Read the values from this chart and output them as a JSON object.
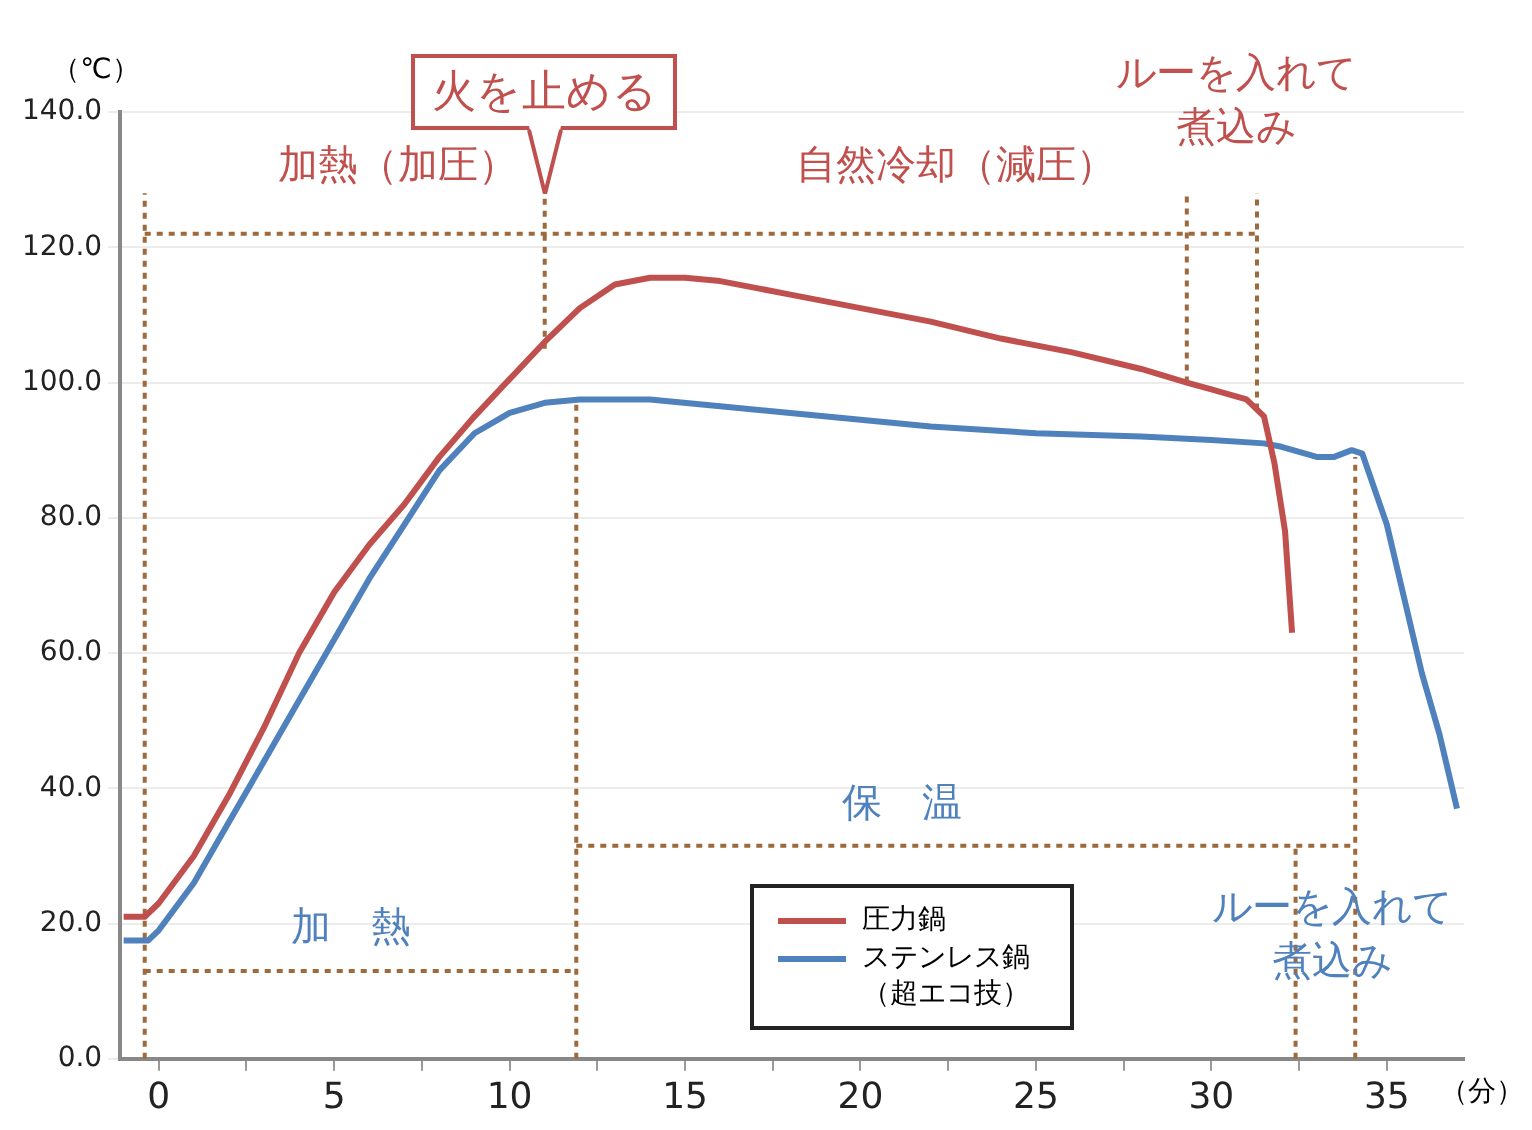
{
  "chart_data": {
    "type": "line",
    "xlabel": "（分）",
    "ylabel": "（℃）",
    "xlim": [
      -1.1,
      37.2
    ],
    "xticks": [
      0,
      {
        "value": 2.5,
        "label": null
      },
      5,
      {
        "value": 7.5,
        "label": null
      },
      10,
      {
        "value": 12.5,
        "label": null
      },
      15,
      {
        "value": 17.5,
        "label": null
      },
      20,
      {
        "value": 22.5,
        "label": null
      },
      25,
      {
        "value": 27.5,
        "label": null
      },
      30,
      {
        "value": 32.5,
        "label": null
      },
      35
    ],
    "ylim": [
      0,
      140
    ],
    "yticks": [
      {
        "value": 0,
        "label": "0.0"
      },
      {
        "value": 20,
        "label": "20.0"
      },
      {
        "value": 40,
        "label": "40.0"
      },
      {
        "value": 60,
        "label": "60.0"
      },
      {
        "value": 80,
        "label": "80.0"
      },
      {
        "value": 100,
        "label": "100.0"
      },
      {
        "value": 120,
        "label": "120.0"
      },
      {
        "value": 140,
        "label": "140.0"
      }
    ],
    "grid": "y",
    "legend": "bottom",
    "marker": "none",
    "line_style": "solid",
    "series": [
      {
        "name": "圧力鍋",
        "color": "#c0504d",
        "x": [
          -1,
          -0.4,
          0,
          1,
          2,
          3,
          4,
          5,
          6,
          7,
          8,
          9,
          10,
          11,
          12,
          13,
          14,
          15,
          16,
          18,
          20,
          22,
          24,
          26,
          28,
          29.3,
          30,
          31,
          31.5,
          31.8,
          32.1,
          32.3
        ],
        "values": [
          21,
          21,
          23,
          30,
          39,
          49,
          60,
          69,
          76,
          82,
          89,
          95,
          100.5,
          106,
          111,
          114.5,
          115.5,
          115.5,
          115,
          113,
          111,
          109,
          106.5,
          104.5,
          102,
          100,
          99,
          97.5,
          95,
          88,
          78,
          63
        ]
      },
      {
        "name": "ステンレス鍋（超エコ技）",
        "color": "#4f81bd",
        "x": [
          -1,
          -0.3,
          0,
          1,
          2,
          3,
          4,
          5,
          6,
          7,
          8,
          9,
          10,
          11,
          12,
          14,
          16,
          18,
          20,
          22,
          25,
          28,
          30,
          31.5,
          32,
          33,
          33.5,
          34,
          34.3,
          35,
          35.5,
          36,
          36.5,
          37
        ],
        "values": [
          17.5,
          17.5,
          19,
          26,
          35,
          44,
          53,
          62,
          71,
          79,
          87,
          92.5,
          95.5,
          97,
          97.5,
          97.5,
          96.5,
          95.5,
          94.5,
          93.5,
          92.5,
          92,
          91.5,
          91,
          90.5,
          89,
          89,
          90,
          89.5,
          79,
          68,
          57,
          48,
          37
        ]
      },
      {
        "color": "#9c6a3c",
        "line_style": "dotted",
        "x": [
          -0.4,
          -0.4
        ],
        "values": [
          0,
          128
        ]
      },
      {
        "color": "#9c6a3c",
        "line_style": "dotted",
        "x": [
          11,
          11
        ],
        "values": [
          105,
          128
        ]
      },
      {
        "color": "#9c6a3c",
        "line_style": "dotted",
        "x": [
          29.3,
          29.3
        ],
        "values": [
          100,
          128
        ]
      },
      {
        "color": "#9c6a3c",
        "line_style": "dotted",
        "x": [
          31.3,
          31.3
        ],
        "values": [
          96,
          128
        ]
      },
      {
        "color": "#9c6a3c",
        "line_style": "dotted",
        "x": [
          -0.4,
          31.3
        ],
        "values": [
          122,
          122
        ]
      },
      {
        "color": "#9c6a3c",
        "line_style": "dotted",
        "x": [
          11.9,
          11.9
        ],
        "values": [
          0,
          97
        ]
      },
      {
        "color": "#9c6a3c",
        "line_style": "dotted",
        "x": [
          32.4,
          32.4
        ],
        "values": [
          0,
          31.5
        ]
      },
      {
        "color": "#9c6a3c",
        "line_style": "dotted",
        "x": [
          34.1,
          34.1
        ],
        "values": [
          0,
          89
        ]
      },
      {
        "color": "#9c6a3c",
        "line_style": "dotted",
        "x": [
          11.9,
          34.1
        ],
        "values": [
          31.5,
          31.5
        ]
      },
      {
        "color": "#9c6a3c",
        "line_style": "dotted",
        "x": [
          -0.4,
          11.9
        ],
        "values": [
          13,
          13
        ]
      }
    ],
    "annotations": [
      {
        "text": "火を止める",
        "x": 11,
        "y": 128
      },
      "加熱（加圧）",
      "自然冷却（減圧）",
      "ルーを入れて煮込み",
      "保　温",
      "加　熱",
      "ルーを入れて煮込み"
    ]
  }
}
